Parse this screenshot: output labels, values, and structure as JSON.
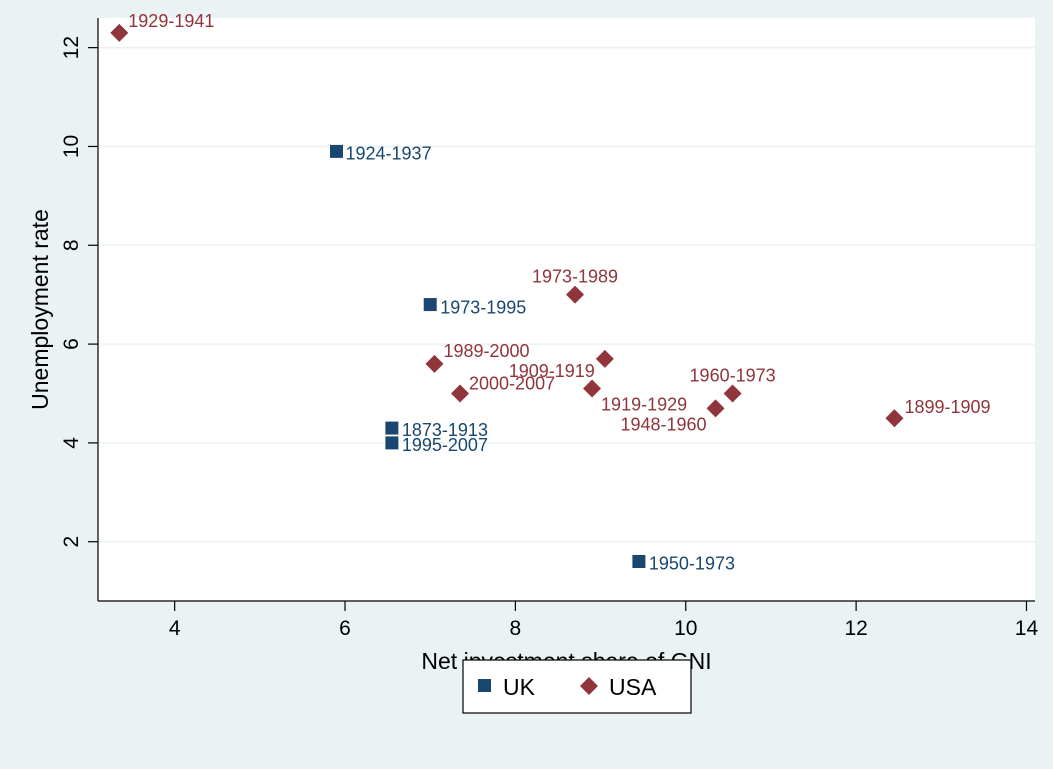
{
  "chart_data": {
    "type": "scatter",
    "xlabel": "Net investment share of GNI",
    "ylabel": "Unemployment rate",
    "xlim": [
      3.1,
      14.1
    ],
    "ylim": [
      0.8,
      12.6
    ],
    "xticks": [
      4,
      6,
      8,
      10,
      12,
      14
    ],
    "yticks": [
      2,
      4,
      6,
      8,
      10,
      12
    ],
    "grid": true,
    "legend": "bottom-center",
    "series": [
      {
        "name": "UK",
        "marker": "square",
        "color": "#1a476f",
        "points": [
          {
            "x": 5.9,
            "y": 9.9,
            "label": "1924-1937"
          },
          {
            "x": 7.0,
            "y": 6.8,
            "label": "1973-1995"
          },
          {
            "x": 6.55,
            "y": 4.3,
            "label": "1873-1913"
          },
          {
            "x": 6.55,
            "y": 4.0,
            "label": "1995-2007"
          },
          {
            "x": 9.45,
            "y": 1.6,
            "label": "1950-1973"
          }
        ]
      },
      {
        "name": "USA",
        "marker": "diamond",
        "color": "#90353b",
        "points": [
          {
            "x": 3.35,
            "y": 12.3,
            "label": "1929-1941"
          },
          {
            "x": 8.7,
            "y": 7.0,
            "label": "1973-1989"
          },
          {
            "x": 7.05,
            "y": 5.6,
            "label": "1989-2000"
          },
          {
            "x": 7.35,
            "y": 5.0,
            "label": "2000-2007"
          },
          {
            "x": 9.05,
            "y": 5.7,
            "label": "1909-1919"
          },
          {
            "x": 8.9,
            "y": 5.1,
            "label": "1919-1929"
          },
          {
            "x": 10.35,
            "y": 4.7,
            "label": "1948-1960"
          },
          {
            "x": 10.55,
            "y": 5.0,
            "label": "1960-1973"
          },
          {
            "x": 12.45,
            "y": 4.5,
            "label": "1899-1909"
          }
        ]
      }
    ]
  }
}
